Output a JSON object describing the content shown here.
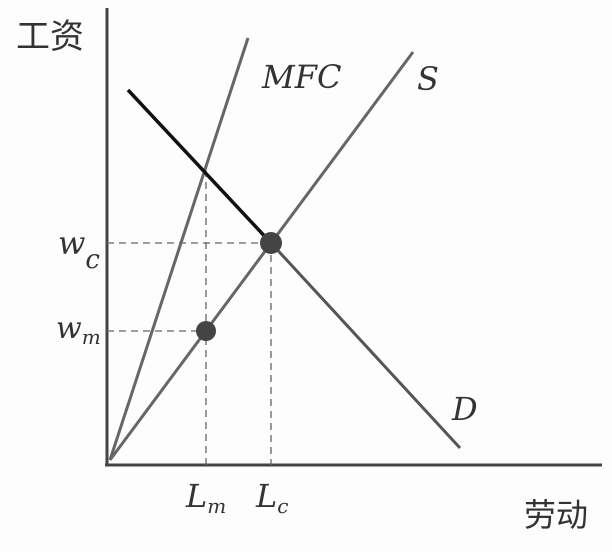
{
  "axes": {
    "y_label": "工资",
    "x_label": "劳动"
  },
  "curves": {
    "mfc": "MFC",
    "supply": "S",
    "demand": "D"
  },
  "wages": {
    "wc_base": "w",
    "wc_sub": "c",
    "wm_base": "w",
    "wm_sub": "m"
  },
  "labor": {
    "lm_base": "L",
    "lm_sub": "m",
    "lc_base": "L",
    "lc_sub": "c"
  },
  "colors": {
    "ink": "#333333",
    "line": "#555555",
    "point": "#444444"
  }
}
